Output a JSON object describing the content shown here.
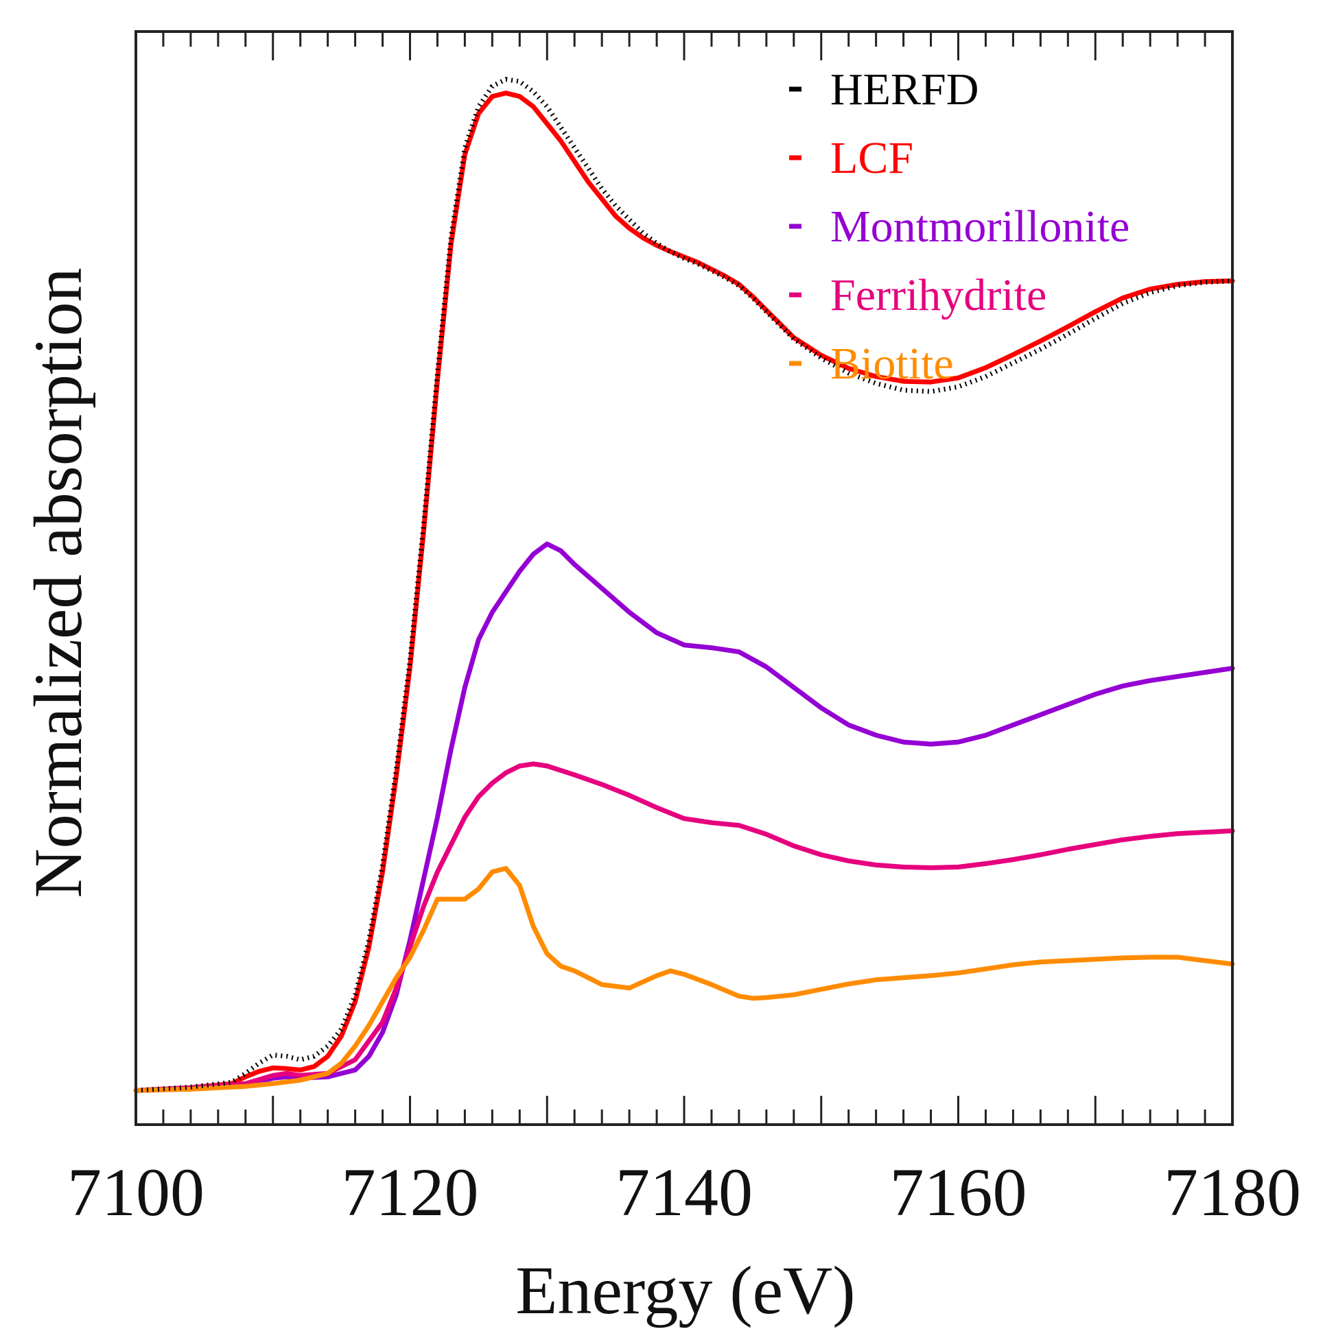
{
  "chart_data": {
    "type": "line",
    "title": "",
    "xlabel": "Energy (eV)",
    "ylabel": "Normalized absorption",
    "xlim": [
      7100,
      7180
    ],
    "ylim": [
      -0.05,
      1.55
    ],
    "x_ticks": [
      7100,
      7120,
      7140,
      7160,
      7180
    ],
    "x_tick_labels": [
      "7100",
      "7120",
      "7140",
      "7160",
      "7180"
    ],
    "y_tick_labels_shown": false,
    "grid": false,
    "legend_position": "top-right",
    "series": [
      {
        "name": "HERFD",
        "color": "#000000",
        "style": "dotted",
        "x": [
          7100,
          7104,
          7107,
          7108,
          7109,
          7110,
          7111,
          7112,
          7113,
          7114,
          7115,
          7116,
          7117,
          7118,
          7119,
          7120,
          7121,
          7122,
          7123,
          7124,
          7125,
          7126,
          7127,
          7128,
          7129,
          7130,
          7131,
          7132,
          7133,
          7134,
          7135,
          7136,
          7137,
          7138,
          7139,
          7140,
          7141,
          7142,
          7143,
          7144,
          7145,
          7146,
          7147,
          7148,
          7150,
          7152,
          7154,
          7156,
          7158,
          7160,
          7162,
          7164,
          7166,
          7168,
          7170,
          7172,
          7174,
          7176,
          7178,
          7180
        ],
        "y": [
          0.0,
          0.005,
          0.012,
          0.025,
          0.04,
          0.052,
          0.05,
          0.045,
          0.05,
          0.065,
          0.09,
          0.14,
          0.22,
          0.33,
          0.47,
          0.63,
          0.83,
          1.05,
          1.25,
          1.38,
          1.44,
          1.47,
          1.48,
          1.477,
          1.462,
          1.44,
          1.41,
          1.38,
          1.35,
          1.32,
          1.295,
          1.275,
          1.255,
          1.24,
          1.228,
          1.218,
          1.21,
          1.2,
          1.19,
          1.178,
          1.16,
          1.14,
          1.12,
          1.1,
          1.072,
          1.05,
          1.035,
          1.025,
          1.023,
          1.03,
          1.045,
          1.065,
          1.085,
          1.107,
          1.13,
          1.152,
          1.168,
          1.178,
          1.183,
          1.185
        ]
      },
      {
        "name": "LCF",
        "color": "#ff0000",
        "style": "solid",
        "x": [
          7100,
          7104,
          7107,
          7108,
          7109,
          7110,
          7111,
          7112,
          7113,
          7114,
          7115,
          7116,
          7117,
          7118,
          7119,
          7120,
          7121,
          7122,
          7123,
          7124,
          7125,
          7126,
          7127,
          7128,
          7129,
          7130,
          7131,
          7132,
          7133,
          7134,
          7135,
          7136,
          7137,
          7138,
          7139,
          7140,
          7141,
          7142,
          7143,
          7144,
          7145,
          7146,
          7147,
          7148,
          7150,
          7152,
          7154,
          7156,
          7158,
          7160,
          7162,
          7164,
          7166,
          7168,
          7170,
          7172,
          7174,
          7176,
          7178,
          7180
        ],
        "y": [
          0.0,
          0.004,
          0.01,
          0.02,
          0.028,
          0.033,
          0.032,
          0.03,
          0.035,
          0.05,
          0.08,
          0.13,
          0.21,
          0.32,
          0.46,
          0.62,
          0.82,
          1.04,
          1.24,
          1.37,
          1.43,
          1.455,
          1.46,
          1.455,
          1.44,
          1.415,
          1.39,
          1.36,
          1.33,
          1.305,
          1.28,
          1.262,
          1.248,
          1.237,
          1.228,
          1.22,
          1.212,
          1.202,
          1.192,
          1.18,
          1.162,
          1.142,
          1.122,
          1.102,
          1.076,
          1.057,
          1.045,
          1.038,
          1.037,
          1.043,
          1.058,
          1.077,
          1.097,
          1.118,
          1.14,
          1.16,
          1.173,
          1.18,
          1.184,
          1.185
        ]
      },
      {
        "name": "Montmorillonite",
        "color": "#9400d3",
        "style": "solid",
        "x": [
          7100,
          7104,
          7108,
          7110,
          7111,
          7112,
          7114,
          7116,
          7117,
          7118,
          7119,
          7120,
          7121,
          7122,
          7123,
          7124,
          7125,
          7126,
          7127,
          7128,
          7129,
          7130,
          7131,
          7132,
          7134,
          7136,
          7138,
          7140,
          7142,
          7144,
          7146,
          7148,
          7150,
          7152,
          7154,
          7156,
          7158,
          7160,
          7162,
          7164,
          7166,
          7168,
          7170,
          7172,
          7174,
          7176,
          7178,
          7180
        ],
        "y": [
          0.0,
          0.002,
          0.008,
          0.018,
          0.02,
          0.018,
          0.02,
          0.03,
          0.05,
          0.085,
          0.14,
          0.22,
          0.31,
          0.4,
          0.5,
          0.59,
          0.66,
          0.7,
          0.73,
          0.76,
          0.785,
          0.8,
          0.79,
          0.77,
          0.735,
          0.7,
          0.67,
          0.652,
          0.648,
          0.642,
          0.62,
          0.59,
          0.56,
          0.535,
          0.52,
          0.51,
          0.507,
          0.51,
          0.52,
          0.535,
          0.55,
          0.565,
          0.58,
          0.592,
          0.6,
          0.606,
          0.612,
          0.618
        ]
      },
      {
        "name": "Ferrihydrite",
        "color": "#e6007e",
        "style": "solid",
        "x": [
          7100,
          7104,
          7108,
          7110,
          7111,
          7112,
          7114,
          7116,
          7118,
          7119,
          7120,
          7121,
          7122,
          7123,
          7124,
          7125,
          7126,
          7127,
          7128,
          7129,
          7130,
          7132,
          7134,
          7136,
          7138,
          7140,
          7142,
          7144,
          7146,
          7148,
          7150,
          7152,
          7154,
          7156,
          7158,
          7160,
          7162,
          7164,
          7166,
          7168,
          7170,
          7172,
          7174,
          7176,
          7178,
          7180
        ],
        "y": [
          0.0,
          0.004,
          0.01,
          0.022,
          0.025,
          0.022,
          0.025,
          0.045,
          0.1,
          0.15,
          0.21,
          0.27,
          0.32,
          0.36,
          0.4,
          0.43,
          0.45,
          0.465,
          0.475,
          0.478,
          0.475,
          0.462,
          0.448,
          0.432,
          0.414,
          0.398,
          0.392,
          0.388,
          0.375,
          0.358,
          0.345,
          0.336,
          0.33,
          0.327,
          0.326,
          0.327,
          0.332,
          0.338,
          0.345,
          0.353,
          0.36,
          0.367,
          0.372,
          0.376,
          0.378,
          0.38
        ]
      },
      {
        "name": "Biotite",
        "color": "#ff8c00",
        "style": "solid",
        "x": [
          7100,
          7104,
          7108,
          7110,
          7112,
          7114,
          7115,
          7116,
          7117,
          7118,
          7119,
          7120,
          7121,
          7122,
          7123,
          7124,
          7125,
          7126,
          7127,
          7128,
          7129,
          7130,
          7131,
          7132,
          7133,
          7134,
          7136,
          7138,
          7139,
          7140,
          7142,
          7144,
          7145,
          7146,
          7148,
          7150,
          7152,
          7154,
          7156,
          7158,
          7160,
          7162,
          7164,
          7166,
          7168,
          7170,
          7172,
          7174,
          7176,
          7178,
          7180
        ],
        "y": [
          0.0,
          0.002,
          0.006,
          0.01,
          0.015,
          0.025,
          0.04,
          0.065,
          0.095,
          0.13,
          0.165,
          0.195,
          0.235,
          0.28,
          0.28,
          0.28,
          0.295,
          0.32,
          0.325,
          0.3,
          0.24,
          0.2,
          0.182,
          0.175,
          0.165,
          0.155,
          0.15,
          0.168,
          0.175,
          0.17,
          0.155,
          0.138,
          0.135,
          0.136,
          0.14,
          0.148,
          0.156,
          0.162,
          0.165,
          0.168,
          0.172,
          0.178,
          0.184,
          0.188,
          0.19,
          0.192,
          0.194,
          0.195,
          0.195,
          0.19,
          0.185
        ]
      }
    ]
  }
}
